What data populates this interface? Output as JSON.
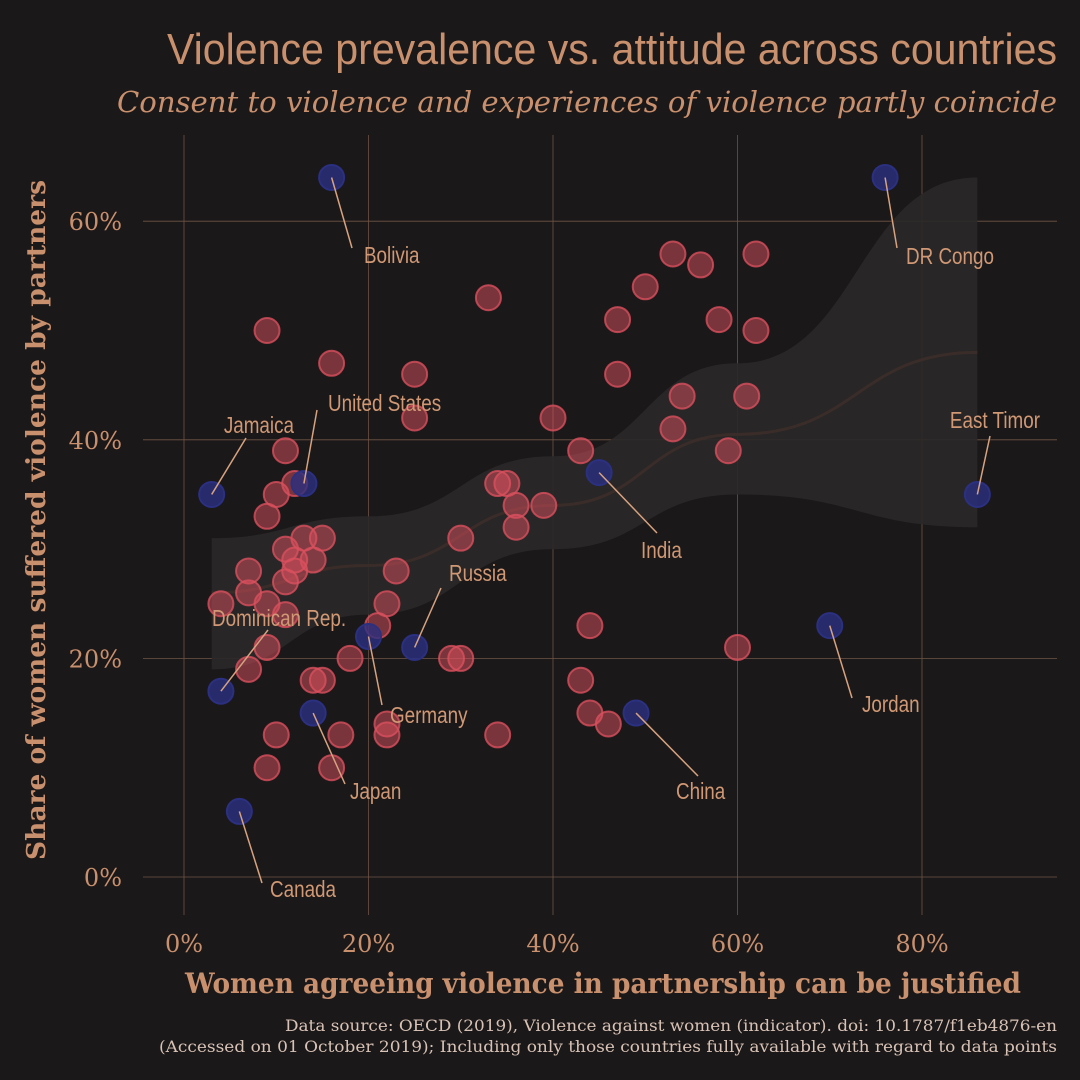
{
  "colors": {
    "background": "#1b1819",
    "text": "#c9906e",
    "grid": "#6e5446",
    "other_points": "#d9505e",
    "highlighted_points": "#2b3080",
    "trend": "#3a2d29",
    "band": "#2a2828"
  },
  "chart_data": {
    "type": "scatter",
    "title": "Violence prevalence vs. attitude across countries",
    "subtitle": "Consent to violence and experiences of violence partly coincide",
    "xlabel": "Women agreeing violence in partnership can be justified",
    "ylabel": "Share of women suffered violence by partners",
    "xlim": [
      -5,
      94
    ],
    "ylim": [
      -2,
      68
    ],
    "x_ticks": [
      0,
      20,
      40,
      60,
      80
    ],
    "x_tick_labels": [
      "0%",
      "20%",
      "40%",
      "60%",
      "80%"
    ],
    "y_ticks": [
      0,
      20,
      40,
      60
    ],
    "y_tick_labels": [
      "0%",
      "20%",
      "40%",
      "60%"
    ],
    "grid": true,
    "caption": [
      "Data source: OECD (2019), Violence against women (indicator). doi: 10.1787/f1eb4876-en",
      "(Accessed on 01 October 2019); Including only those countries fully available with regard to data points"
    ],
    "highlighted": [
      {
        "label": "Bolivia",
        "x": 16,
        "y": 64
      },
      {
        "label": "DR Congo",
        "x": 76,
        "y": 64
      },
      {
        "label": "East Timor",
        "x": 86,
        "y": 35
      },
      {
        "label": "Jamaica",
        "x": 3,
        "y": 35
      },
      {
        "label": "United States",
        "x": 13,
        "y": 36
      },
      {
        "label": "India",
        "x": 45,
        "y": 37
      },
      {
        "label": "Russia",
        "x": 25,
        "y": 21
      },
      {
        "label": "Germany",
        "x": 20,
        "y": 22
      },
      {
        "label": "Dominican Rep.",
        "x": 4,
        "y": 17
      },
      {
        "label": "Japan",
        "x": 14,
        "y": 15
      },
      {
        "label": "China",
        "x": 49,
        "y": 15
      },
      {
        "label": "Jordan",
        "x": 70,
        "y": 23
      },
      {
        "label": "Canada",
        "x": 6,
        "y": 6
      }
    ],
    "others": [
      [
        53,
        57
      ],
      [
        56,
        56
      ],
      [
        62,
        57
      ],
      [
        50,
        54
      ],
      [
        33,
        53
      ],
      [
        47,
        51
      ],
      [
        58,
        51
      ],
      [
        62,
        50
      ],
      [
        9,
        50
      ],
      [
        16,
        47
      ],
      [
        47,
        46
      ],
      [
        25,
        46
      ],
      [
        54,
        44
      ],
      [
        61,
        44
      ],
      [
        25,
        42
      ],
      [
        40,
        42
      ],
      [
        53,
        41
      ],
      [
        11,
        39
      ],
      [
        43,
        39
      ],
      [
        59,
        39
      ],
      [
        34,
        36
      ],
      [
        35,
        36
      ],
      [
        12,
        36
      ],
      [
        10,
        35
      ],
      [
        36,
        34
      ],
      [
        39,
        34
      ],
      [
        9,
        33
      ],
      [
        36,
        32
      ],
      [
        13,
        31
      ],
      [
        15,
        31
      ],
      [
        30,
        31
      ],
      [
        11,
        30
      ],
      [
        12,
        29
      ],
      [
        14,
        29
      ],
      [
        12,
        28
      ],
      [
        7,
        28
      ],
      [
        23,
        28
      ],
      [
        11,
        27
      ],
      [
        7,
        26
      ],
      [
        4,
        25
      ],
      [
        9,
        25
      ],
      [
        22,
        25
      ],
      [
        11,
        24
      ],
      [
        21,
        23
      ],
      [
        44,
        23
      ],
      [
        9,
        21
      ],
      [
        60,
        21
      ],
      [
        18,
        20
      ],
      [
        29,
        20
      ],
      [
        30,
        20
      ],
      [
        7,
        19
      ],
      [
        14,
        18
      ],
      [
        15,
        18
      ],
      [
        43,
        18
      ],
      [
        22,
        14
      ],
      [
        46,
        14
      ],
      [
        44,
        15
      ],
      [
        10,
        13
      ],
      [
        17,
        13
      ],
      [
        22,
        13
      ],
      [
        34,
        13
      ],
      [
        16,
        10
      ],
      [
        9,
        10
      ]
    ],
    "trend": {
      "x": [
        3,
        20,
        40,
        60,
        86
      ],
      "y": [
        26,
        28.5,
        34,
        40.5,
        48
      ],
      "lower": [
        19,
        24,
        30,
        35,
        32
      ],
      "upper": [
        31,
        33,
        38.5,
        47,
        64
      ]
    }
  }
}
